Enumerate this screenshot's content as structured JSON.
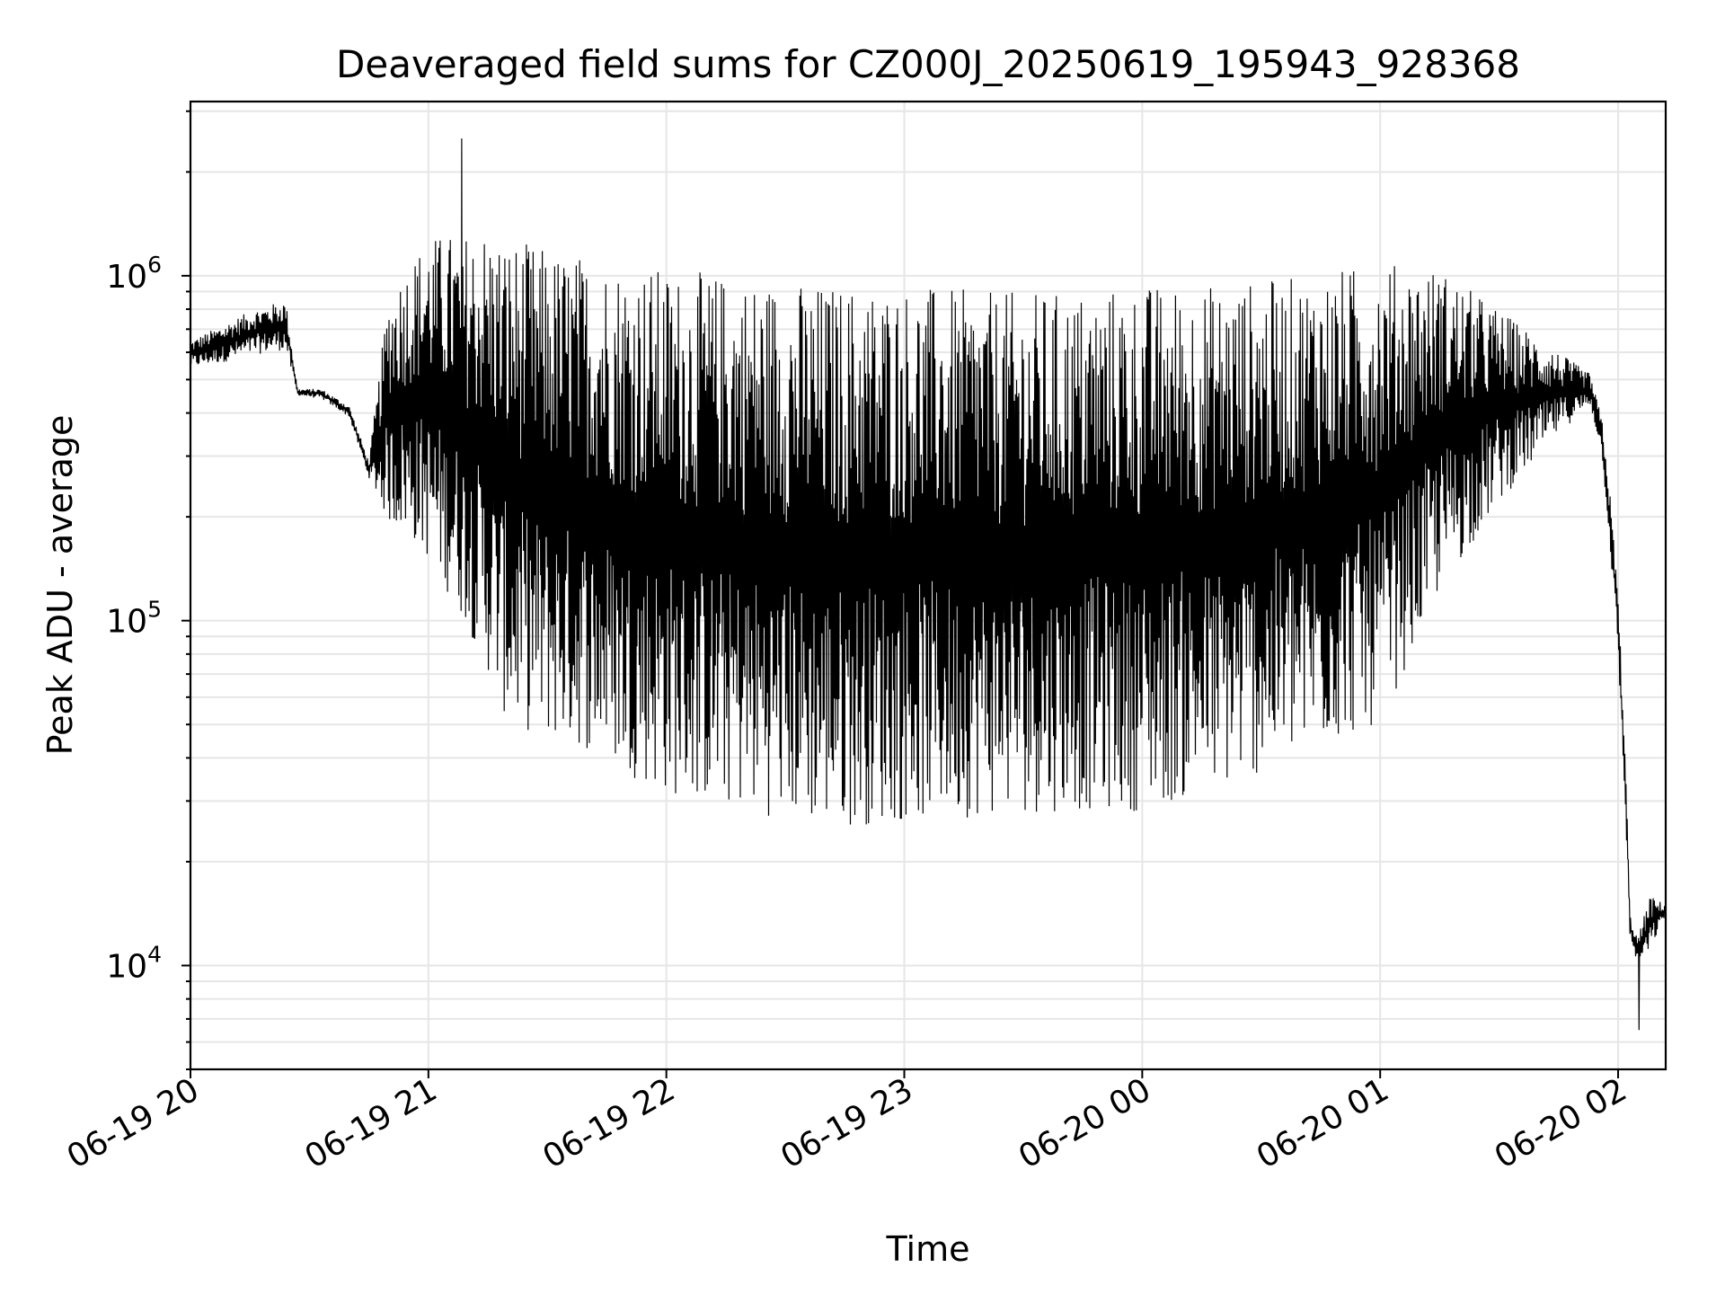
{
  "chart_data": {
    "type": "line",
    "title": "Deaveraged field sums for CZ000J_20250619_195943_928368",
    "xlabel": "Time",
    "ylabel": "Peak ADU - average",
    "x_scale": "time",
    "y_scale": "log",
    "xlim": [
      "2025-06-19 20:00",
      "2025-06-20 02:12"
    ],
    "ylim": [
      5000,
      3200000
    ],
    "grid": true,
    "legend": "none",
    "line_color": "#000000",
    "grid_color": "#e6e6e6",
    "x_ticks": [
      {
        "time": "2025-06-19 20:00",
        "label": "06-19 20"
      },
      {
        "time": "2025-06-19 21:00",
        "label": "06-19 21"
      },
      {
        "time": "2025-06-19 22:00",
        "label": "06-19 22"
      },
      {
        "time": "2025-06-19 23:00",
        "label": "06-19 23"
      },
      {
        "time": "2025-06-20 00:00",
        "label": "06-20 00"
      },
      {
        "time": "2025-06-20 01:00",
        "label": "06-20 01"
      },
      {
        "time": "2025-06-20 02:00",
        "label": "06-20 02"
      }
    ],
    "y_ticks": [
      {
        "value": 10000,
        "base": "10",
        "exp": "4"
      },
      {
        "value": 100000,
        "base": "10",
        "exp": "5"
      },
      {
        "value": 1000000,
        "base": "10",
        "exp": "6"
      }
    ],
    "series": [
      {
        "x": [
          "2025-06-19 20:00",
          "2025-06-19 20:08",
          "2025-06-19 20:16",
          "2025-06-19 20:24",
          "2025-06-19 20:27",
          "2025-06-19 20:33",
          "2025-06-19 20:40",
          "2025-06-19 20:45",
          "2025-06-19 20:50",
          "2025-06-19 20:55",
          "2025-06-19 21:00",
          "2025-06-19 21:10",
          "2025-06-19 21:15",
          "2025-06-19 21:20",
          "2025-06-19 21:30",
          "2025-06-19 21:40",
          "2025-06-19 21:50",
          "2025-06-19 22:00",
          "2025-06-19 22:20",
          "2025-06-19 22:40",
          "2025-06-19 23:00",
          "2025-06-19 23:20",
          "2025-06-19 23:40",
          "2025-06-20 00:00",
          "2025-06-20 00:20",
          "2025-06-20 00:40",
          "2025-06-20 00:50",
          "2025-06-20 01:00",
          "2025-06-20 01:15",
          "2025-06-20 01:30",
          "2025-06-20 01:45",
          "2025-06-20 01:53",
          "2025-06-20 01:56",
          "2025-06-20 01:58",
          "2025-06-20 02:00",
          "2025-06-20 02:02",
          "2025-06-20 02:03",
          "2025-06-20 02:05",
          "2025-06-20 02:08",
          "2025-06-20 02:12"
        ],
        "lo": [
          540000,
          560000,
          590000,
          610000,
          450000,
          440000,
          390000,
          260000,
          190000,
          175000,
          150000,
          95000,
          70000,
          50000,
          45000,
          42000,
          36000,
          31000,
          28000,
          25000,
          26000,
          27000,
          28000,
          28000,
          32000,
          40000,
          45000,
          50000,
          120000,
          220000,
          350000,
          420000,
          300000,
          160000,
          80000,
          25000,
          12000,
          10000,
          11000,
          14000
        ],
        "hi": [
          650000,
          720000,
          800000,
          850000,
          470000,
          470000,
          420000,
          290000,
          900000,
          1100000,
          1300000,
          1350000,
          1400000,
          1300000,
          1200000,
          1150000,
          1100000,
          1050000,
          1000000,
          950000,
          950000,
          900000,
          900000,
          950000,
          950000,
          1000000,
          1050000,
          1100000,
          1050000,
          800000,
          600000,
          520000,
          380000,
          230000,
          120000,
          35000,
          14000,
          12000,
          16000,
          15000
        ],
        "min_value": 6500,
        "max_value": 2500000
      }
    ]
  }
}
